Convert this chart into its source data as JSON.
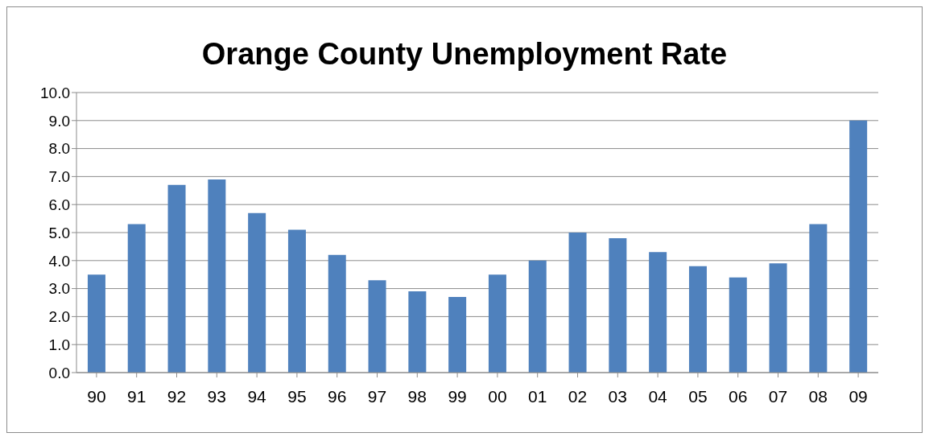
{
  "chart_data": {
    "type": "bar",
    "title": "Orange County Unemployment Rate",
    "categories": [
      "90",
      "91",
      "92",
      "93",
      "94",
      "95",
      "96",
      "97",
      "98",
      "99",
      "00",
      "01",
      "02",
      "03",
      "04",
      "05",
      "06",
      "07",
      "08",
      "09"
    ],
    "values": [
      3.5,
      5.3,
      6.7,
      6.9,
      5.7,
      5.1,
      4.2,
      3.3,
      2.9,
      2.7,
      3.5,
      4.0,
      5.0,
      4.8,
      4.3,
      3.8,
      3.4,
      3.9,
      5.3,
      9.0
    ],
    "color": "#4f81bd",
    "ylim": [
      0,
      10
    ],
    "yticks": [
      {
        "value": 0,
        "label": "0.0"
      },
      {
        "value": 1,
        "label": "1.0"
      },
      {
        "value": 2,
        "label": "2.0"
      },
      {
        "value": 3,
        "label": "3.0"
      },
      {
        "value": 4,
        "label": "4.0"
      },
      {
        "value": 5,
        "label": "5.0"
      },
      {
        "value": 6,
        "label": "6.0"
      },
      {
        "value": 7,
        "label": "7.0"
      },
      {
        "value": 8,
        "label": "8.0"
      },
      {
        "value": 9,
        "label": "9.0"
      },
      {
        "value": 10,
        "label": "10.0"
      }
    ],
    "grid": "y"
  }
}
